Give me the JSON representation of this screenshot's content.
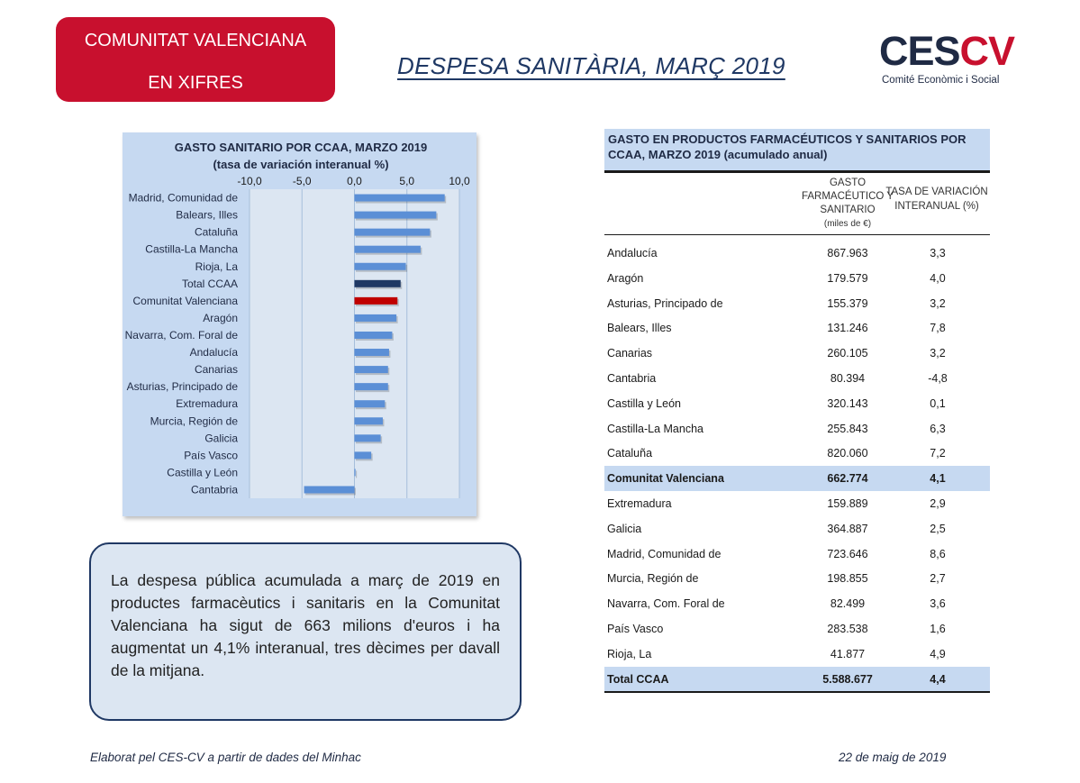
{
  "header": {
    "badge_line1": "COMUNITAT VALENCIANA",
    "badge_line2": "EN XIFRES",
    "title": "DESPESA SANITÀRIA, MARÇ 2019",
    "logo_ces": "CES",
    "logo_cv": "CV",
    "logo_subtitle": "Comité Econòmic i Social"
  },
  "colors": {
    "brand_red": "#c8102e",
    "navy": "#1f3864",
    "bar_default": "#5b8fd6",
    "bar_total": "#1f3864",
    "bar_highlight": "#c00000",
    "panel_bg": "#c6d9f1"
  },
  "chart_data": {
    "type": "bar",
    "orientation": "horizontal",
    "title": "GASTO SANITARIO POR CCAA, MARZO 2019",
    "subtitle": "(tasa de variación interanual %)",
    "xlim": [
      -10,
      10
    ],
    "xticks": [
      "-10,0",
      "-5,0",
      "0,0",
      "5,0",
      "10,0"
    ],
    "xtick_values": [
      -10,
      -5,
      0,
      5,
      10
    ],
    "grid": "vertical",
    "categories": [
      "Madrid, Comunidad de",
      "Balears, Illes",
      "Cataluña",
      "Castilla-La Mancha",
      "Rioja, La",
      "Total CCAA",
      "Comunitat Valenciana",
      "Aragón",
      "Navarra, Com. Foral de",
      "Andalucía",
      "Canarias",
      "Asturias, Principado de",
      "Extremadura",
      "Murcia, Región de",
      "Galicia",
      "País Vasco",
      "Castilla y León",
      "Cantabria"
    ],
    "values": [
      8.6,
      7.8,
      7.2,
      6.3,
      4.9,
      4.4,
      4.1,
      4.0,
      3.6,
      3.3,
      3.2,
      3.2,
      2.9,
      2.7,
      2.5,
      1.6,
      0.1,
      -4.8
    ],
    "highlight": {
      "Total CCAA": "total",
      "Comunitat Valenciana": "highlight"
    }
  },
  "summary_text": "La despesa pública acumulada a març de 2019 en productes farmacèutics i sanitaris en la Comunitat Valenciana ha sigut de 663 milions d'euros i ha augmentat un 4,1% interanual, tres dècimes per davall de la mitjana.",
  "table": {
    "title": "GASTO EN PRODUCTOS FARMACÉUTICOS Y SANITARIOS POR CCAA, MARZO 2019 (acumulado anual)",
    "col1_header": "GASTO FARMACÉUTICO Y SANITARIO",
    "col1_unit": "(miles de €)",
    "col2_header": "TASA DE VARIACIÓN INTERANUAL (%)",
    "rows": [
      {
        "name": "Andalucía",
        "gasto": "867.963",
        "tasa": "3,3"
      },
      {
        "name": "Aragón",
        "gasto": "179.579",
        "tasa": "4,0"
      },
      {
        "name": "Asturias, Principado de",
        "gasto": "155.379",
        "tasa": "3,2"
      },
      {
        "name": "Balears, Illes",
        "gasto": "131.246",
        "tasa": "7,8"
      },
      {
        "name": "Canarias",
        "gasto": "260.105",
        "tasa": "3,2"
      },
      {
        "name": "Cantabria",
        "gasto": "80.394",
        "tasa": "-4,8"
      },
      {
        "name": "Castilla y León",
        "gasto": "320.143",
        "tasa": "0,1"
      },
      {
        "name": "Castilla-La Mancha",
        "gasto": "255.843",
        "tasa": "6,3"
      },
      {
        "name": "Cataluña",
        "gasto": "820.060",
        "tasa": "7,2"
      },
      {
        "name": "Comunitat Valenciana",
        "gasto": "662.774",
        "tasa": "4,1",
        "highlight": true
      },
      {
        "name": "Extremadura",
        "gasto": "159.889",
        "tasa": "2,9"
      },
      {
        "name": "Galicia",
        "gasto": "364.887",
        "tasa": "2,5"
      },
      {
        "name": "Madrid, Comunidad de",
        "gasto": "723.646",
        "tasa": "8,6"
      },
      {
        "name": "Murcia, Región de",
        "gasto": "198.855",
        "tasa": "2,7"
      },
      {
        "name": "Navarra, Com. Foral de",
        "gasto": "82.499",
        "tasa": "3,6"
      },
      {
        "name": "País Vasco",
        "gasto": "283.538",
        "tasa": "1,6"
      },
      {
        "name": "Rioja, La",
        "gasto": "41.877",
        "tasa": "4,9"
      },
      {
        "name": "Total CCAA",
        "gasto": "5.588.677",
        "tasa": "4,4",
        "highlight": true,
        "total": true
      }
    ]
  },
  "footer": {
    "source": "Elaborat pel CES-CV a partir de dades del Minhac",
    "date": "22 de maig de 2019"
  }
}
